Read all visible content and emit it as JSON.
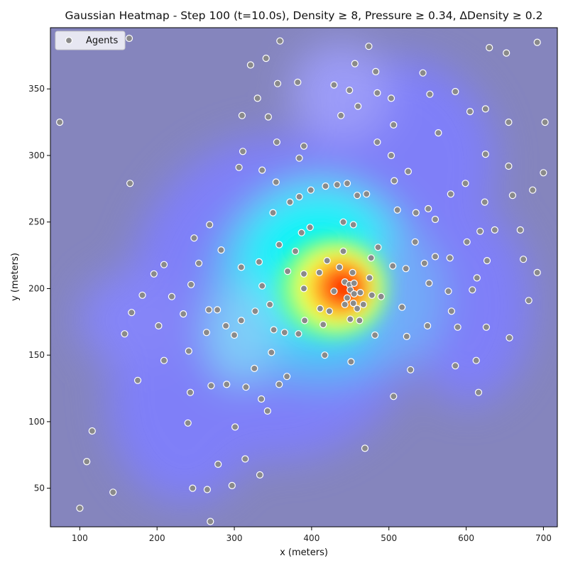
{
  "chart_data": {
    "type": "scatter",
    "title": "Gaussian Heatmap - Step 100 (t=10.0s), Density ≥ 8, Pressure ≥ 0.34, ΔDensity ≥ 0.2",
    "xlabel": "x (meters)",
    "ylabel": "y (meters)",
    "xlim": [
      62,
      718
    ],
    "ylim": [
      21,
      396
    ],
    "xticks": [
      100,
      200,
      300,
      400,
      500,
      600,
      700
    ],
    "yticks": [
      50,
      100,
      150,
      200,
      250,
      300,
      350
    ],
    "grid": false,
    "legend": {
      "placement": "top-left",
      "entries": [
        "Agents"
      ]
    },
    "background": "gaussian density heatmap (jet colormap, semi-transparent), peak near (450, 200)",
    "colors": {
      "heat_peak": "#ff3000",
      "heat_mid": "#00ffff",
      "heat_low": "#8080ff",
      "background": "#8585bd",
      "marker_fill": "#8a8a8a",
      "marker_edge": "#ffffff"
    },
    "series": [
      {
        "name": "Agents",
        "points": [
          [
            74,
            325
          ],
          [
            100,
            35
          ],
          [
            109,
            70
          ],
          [
            116,
            93
          ],
          [
            143,
            47
          ],
          [
            158,
            166
          ],
          [
            164,
            388
          ],
          [
            165,
            279
          ],
          [
            167,
            182
          ],
          [
            175,
            131
          ],
          [
            181,
            195
          ],
          [
            196,
            211
          ],
          [
            202,
            172
          ],
          [
            209,
            146
          ],
          [
            209,
            218
          ],
          [
            219,
            194
          ],
          [
            234,
            181
          ],
          [
            240,
            99
          ],
          [
            241,
            153
          ],
          [
            243,
            122
          ],
          [
            244,
            203
          ],
          [
            246,
            50
          ],
          [
            248,
            238
          ],
          [
            254,
            219
          ],
          [
            264,
            167
          ],
          [
            265,
            49
          ],
          [
            267,
            184
          ],
          [
            268,
            248
          ],
          [
            269,
            25
          ],
          [
            270,
            127
          ],
          [
            278,
            184
          ],
          [
            279,
            68
          ],
          [
            283,
            229
          ],
          [
            289,
            172
          ],
          [
            290,
            128
          ],
          [
            297,
            52
          ],
          [
            300,
            165
          ],
          [
            301,
            96
          ],
          [
            306,
            291
          ],
          [
            309,
            176
          ],
          [
            309,
            216
          ],
          [
            310,
            330
          ],
          [
            311,
            303
          ],
          [
            314,
            72
          ],
          [
            315,
            126
          ],
          [
            321,
            368
          ],
          [
            326,
            140
          ],
          [
            327,
            183
          ],
          [
            330,
            343
          ],
          [
            332,
            220
          ],
          [
            333,
            60
          ],
          [
            335,
            117
          ],
          [
            336,
            202
          ],
          [
            336,
            289
          ],
          [
            341,
            373
          ],
          [
            343,
            108
          ],
          [
            344,
            329
          ],
          [
            346,
            188
          ],
          [
            348,
            152
          ],
          [
            350,
            257
          ],
          [
            351,
            169
          ],
          [
            354,
            280
          ],
          [
            355,
            310
          ],
          [
            356,
            354
          ],
          [
            358,
            128
          ],
          [
            358,
            233
          ],
          [
            359,
            386
          ],
          [
            365,
            167
          ],
          [
            368,
            134
          ],
          [
            369,
            213
          ],
          [
            372,
            265
          ],
          [
            379,
            228
          ],
          [
            382,
            355
          ],
          [
            383,
            166
          ],
          [
            384,
            298
          ],
          [
            384,
            269
          ],
          [
            387,
            242
          ],
          [
            390,
            200
          ],
          [
            390,
            307
          ],
          [
            390,
            211
          ],
          [
            391,
            176
          ],
          [
            398,
            246
          ],
          [
            399,
            274
          ],
          [
            410,
            212
          ],
          [
            411,
            185
          ],
          [
            415,
            173
          ],
          [
            417,
            150
          ],
          [
            418,
            277
          ],
          [
            420,
            221
          ],
          [
            423,
            183
          ],
          [
            429,
            353
          ],
          [
            429,
            198
          ],
          [
            433,
            278
          ],
          [
            436,
            216
          ],
          [
            438,
            330
          ],
          [
            441,
            228
          ],
          [
            441,
            250
          ],
          [
            443,
            188
          ],
          [
            443,
            205
          ],
          [
            446,
            279
          ],
          [
            446,
            193
          ],
          [
            449,
            203
          ],
          [
            449,
            349
          ],
          [
            450,
            177
          ],
          [
            450,
            199
          ],
          [
            451,
            145
          ],
          [
            453,
            212
          ],
          [
            454,
            248
          ],
          [
            454,
            189
          ],
          [
            455,
            196
          ],
          [
            455,
            204
          ],
          [
            456,
            369
          ],
          [
            459,
            185
          ],
          [
            459,
            270
          ],
          [
            460,
            337
          ],
          [
            462,
            176
          ],
          [
            463,
            197
          ],
          [
            467,
            188
          ],
          [
            469,
            80
          ],
          [
            471,
            271
          ],
          [
            474,
            382
          ],
          [
            475,
            208
          ],
          [
            477,
            223
          ],
          [
            478,
            195
          ],
          [
            482,
            165
          ],
          [
            483,
            363
          ],
          [
            485,
            347
          ],
          [
            485,
            310
          ],
          [
            486,
            231
          ],
          [
            490,
            194
          ],
          [
            503,
            343
          ],
          [
            503,
            300
          ],
          [
            505,
            217
          ],
          [
            506,
            119
          ],
          [
            506,
            323
          ],
          [
            507,
            281
          ],
          [
            511,
            259
          ],
          [
            517,
            186
          ],
          [
            522,
            215
          ],
          [
            523,
            164
          ],
          [
            525,
            288
          ],
          [
            528,
            139
          ],
          [
            534,
            235
          ],
          [
            535,
            257
          ],
          [
            544,
            362
          ],
          [
            546,
            219
          ],
          [
            550,
            172
          ],
          [
            551,
            260
          ],
          [
            552,
            204
          ],
          [
            553,
            346
          ],
          [
            560,
            224
          ],
          [
            560,
            252
          ],
          [
            564,
            317
          ],
          [
            577,
            198
          ],
          [
            579,
            223
          ],
          [
            580,
            271
          ],
          [
            581,
            183
          ],
          [
            586,
            142
          ],
          [
            586,
            348
          ],
          [
            589,
            171
          ],
          [
            599,
            279
          ],
          [
            601,
            235
          ],
          [
            605,
            333
          ],
          [
            608,
            199
          ],
          [
            613,
            146
          ],
          [
            614,
            208
          ],
          [
            616,
            122
          ],
          [
            618,
            243
          ],
          [
            624,
            265
          ],
          [
            625,
            301
          ],
          [
            625,
            335
          ],
          [
            626,
            171
          ],
          [
            627,
            221
          ],
          [
            630,
            381
          ],
          [
            637,
            244
          ],
          [
            652,
            377
          ],
          [
            655,
            292
          ],
          [
            655,
            325
          ],
          [
            656,
            163
          ],
          [
            660,
            270
          ],
          [
            670,
            244
          ],
          [
            674,
            222
          ],
          [
            681,
            191
          ],
          [
            686,
            274
          ],
          [
            692,
            385
          ],
          [
            692,
            212
          ],
          [
            700,
            287
          ],
          [
            702,
            325
          ]
        ]
      }
    ]
  }
}
